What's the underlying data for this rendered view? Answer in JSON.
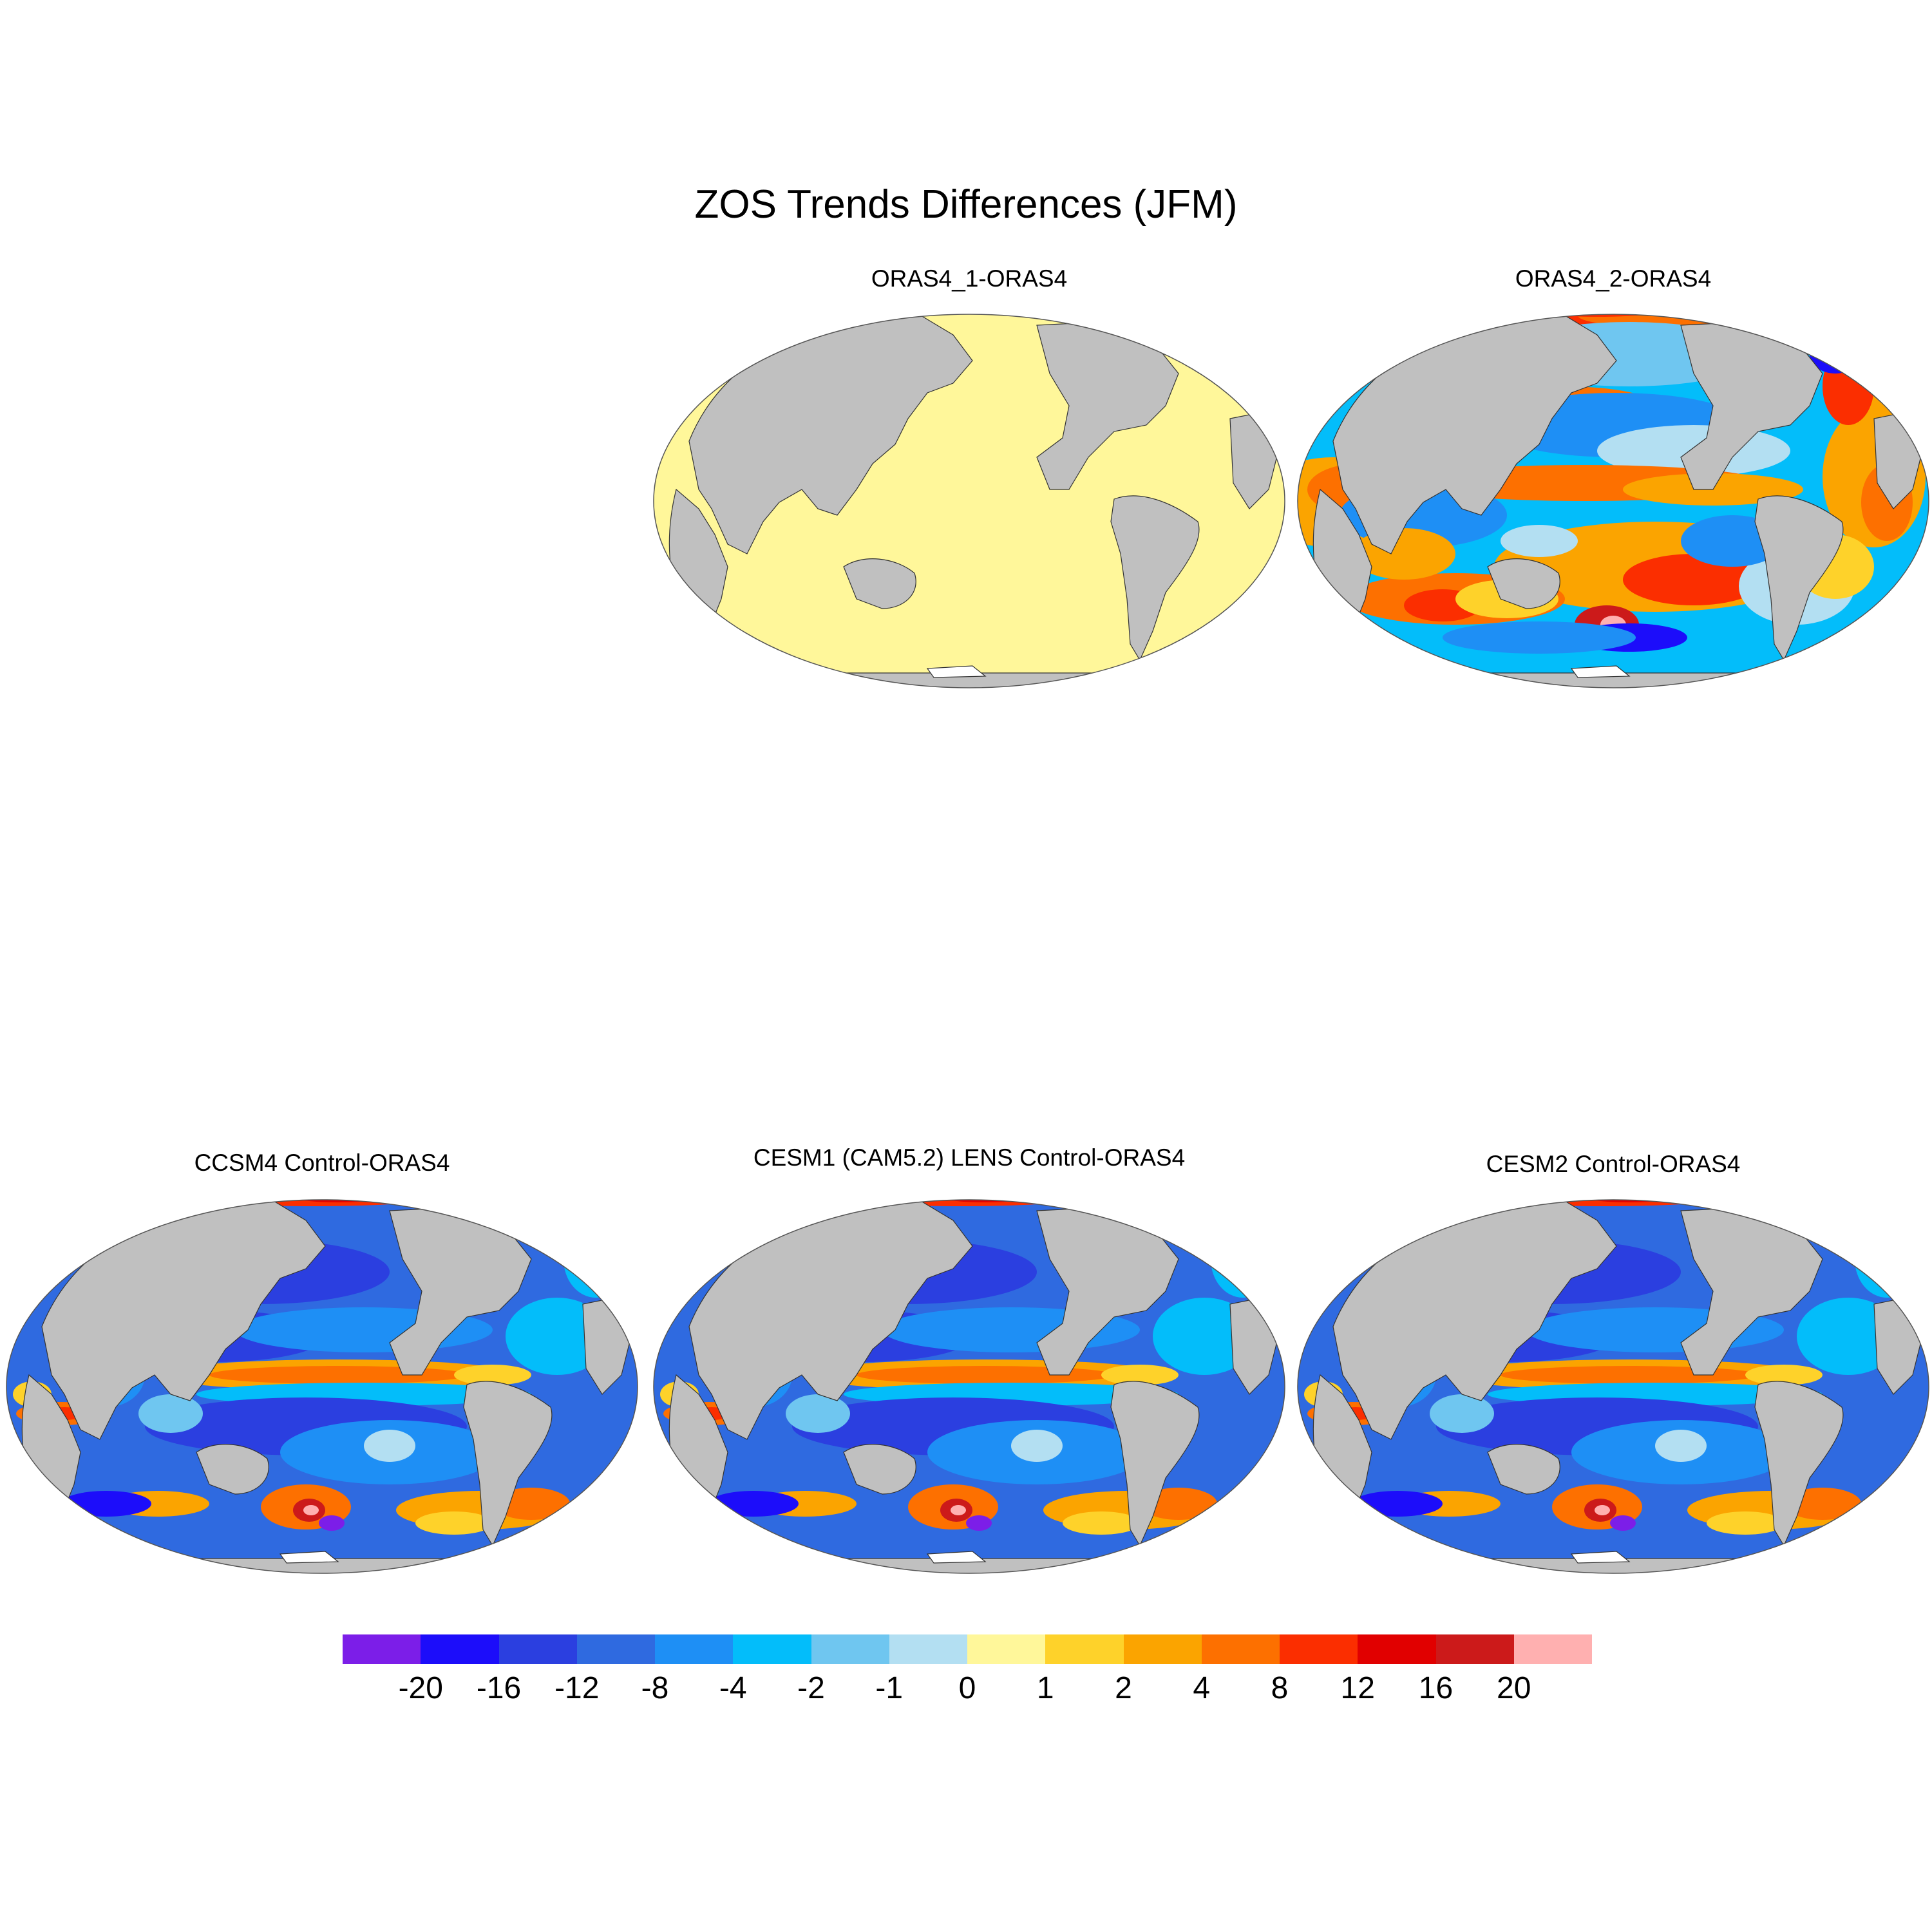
{
  "title": "ZOS Trends Differences (JFM)",
  "panels": [
    {
      "label": "ORAS4_1-ORAS4",
      "pattern": "uniform",
      "fill_color": "#fff79a"
    },
    {
      "label": "ORAS4_2-ORAS4",
      "pattern": "reanalysis"
    },
    {
      "label": "CCSM4 Control-ORAS4",
      "pattern": "model"
    },
    {
      "label": "CESM1 (CAM5.2) LENS Control-ORAS4",
      "pattern": "model"
    },
    {
      "label": "CESM2 Control-ORAS4",
      "pattern": "model"
    }
  ],
  "colorbar": {
    "colors": [
      "#7c1ee8",
      "#1c0dfa",
      "#2b3fe0",
      "#2f6ae0",
      "#1e8ff5",
      "#03bdfa",
      "#6fc6f0",
      "#b3dff2",
      "#fff79a",
      "#fed22a",
      "#fba400",
      "#fd7000",
      "#fb2e00",
      "#e10000",
      "#cc1a1a",
      "#ffb0b0"
    ],
    "labels": [
      "-20",
      "-16",
      "-12",
      "-8",
      "-4",
      "-2",
      "-1",
      "0",
      "1",
      "2",
      "4",
      "8",
      "12",
      "16",
      "20"
    ]
  },
  "land_color": "#c0c0c0",
  "missing_color": "#ffffff"
}
